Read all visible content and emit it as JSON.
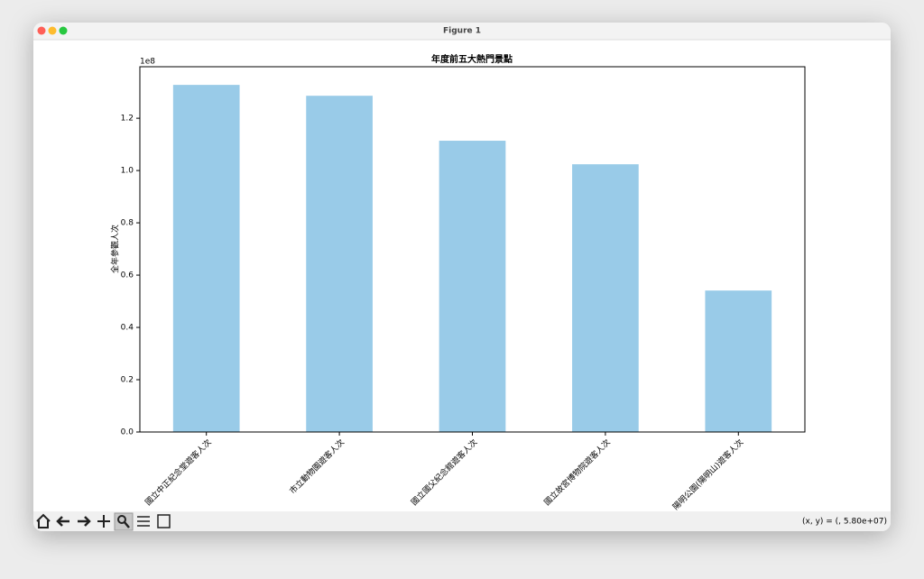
{
  "window": {
    "title": "Figure 1",
    "status": "(x, y) = (, 5.80e+07)"
  },
  "chart_data": {
    "type": "bar",
    "title": "年度前五大熱門景點",
    "y_label": "全年參觀人次",
    "y_offset_label": "1e8",
    "categories": [
      "國立中正紀念堂遊客人次",
      "市立動物園遊客人次",
      "國立國父紀念館遊客人次",
      "國立故宮博物院遊客人次",
      "陽明公園(陽明山)遊客人次"
    ],
    "values": [
      132760000,
      128600000,
      111400000,
      102400000,
      54100000
    ],
    "color": "#99cbe8",
    "ylim": [
      0,
      139700000
    ],
    "yticks": [
      {
        "value": 0,
        "label": "0.0"
      },
      {
        "value": 20000000,
        "label": "0.2"
      },
      {
        "value": 40000000,
        "label": "0.4"
      },
      {
        "value": 60000000,
        "label": "0.6"
      },
      {
        "value": 80000000,
        "label": "0.8"
      },
      {
        "value": 100000000,
        "label": "1.0"
      },
      {
        "value": 120000000,
        "label": "1.2"
      }
    ],
    "grid": false
  }
}
